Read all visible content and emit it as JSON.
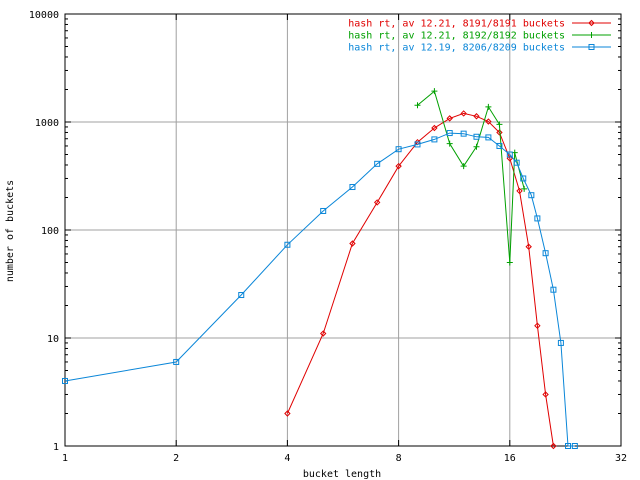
{
  "chart_data": {
    "type": "line",
    "title": "",
    "xlabel": "bucket length",
    "ylabel": "number of buckets",
    "x_scale": "log2",
    "y_scale": "log10",
    "xlim": [
      1,
      32
    ],
    "ylim": [
      1,
      10000
    ],
    "x_ticks": [
      {
        "value": 1,
        "label": "1"
      },
      {
        "value": 2,
        "label": "2"
      },
      {
        "value": 4,
        "label": "4"
      },
      {
        "value": 8,
        "label": "8"
      },
      {
        "value": 16,
        "label": "16"
      },
      {
        "value": 32,
        "label": "32"
      }
    ],
    "y_ticks": [
      {
        "value": 1,
        "label": "1"
      },
      {
        "value": 10,
        "label": "10"
      },
      {
        "value": 100,
        "label": "100"
      },
      {
        "value": 1000,
        "label": "1000"
      },
      {
        "value": 10000,
        "label": "10000"
      }
    ],
    "grid": true,
    "legend_position": "top-right",
    "series": [
      {
        "name": "hash rt, av 12.21, 8191/8191 buckets",
        "color": "#e00000",
        "marker": "diamond",
        "points": [
          [
            4,
            2
          ],
          [
            5,
            11
          ],
          [
            6,
            75
          ],
          [
            7,
            180
          ],
          [
            8,
            390
          ],
          [
            9,
            650
          ],
          [
            10,
            880
          ],
          [
            11,
            1080
          ],
          [
            12,
            1200
          ],
          [
            13,
            1130
          ],
          [
            14,
            1010
          ],
          [
            15,
            800
          ],
          [
            16,
            460
          ],
          [
            17,
            230
          ],
          [
            18,
            70
          ],
          [
            19,
            13
          ],
          [
            20,
            3
          ],
          [
            21,
            1
          ]
        ]
      },
      {
        "name": "hash rt, av 12.21, 8192/8192 buckets",
        "color": "#00a000",
        "marker": "plus",
        "points": [
          [
            9,
            1430
          ],
          [
            10,
            1930
          ],
          [
            11,
            630
          ],
          [
            12,
            390
          ],
          [
            13,
            590
          ],
          [
            14,
            1380
          ],
          [
            15,
            950
          ],
          [
            16,
            50
          ],
          [
            16.5,
            520
          ],
          [
            17.5,
            240
          ]
        ]
      },
      {
        "name": "hash rt, av 12.19, 8206/8209 buckets",
        "color": "#0a86d8",
        "marker": "square",
        "points": [
          [
            1,
            4
          ],
          [
            2,
            6
          ],
          [
            3,
            25
          ],
          [
            4,
            73
          ],
          [
            5,
            150
          ],
          [
            6,
            250
          ],
          [
            7,
            410
          ],
          [
            8,
            560
          ],
          [
            9,
            620
          ],
          [
            10,
            690
          ],
          [
            11,
            790
          ],
          [
            12,
            780
          ],
          [
            13,
            730
          ],
          [
            14,
            720
          ],
          [
            15,
            600
          ],
          [
            16,
            500
          ],
          [
            16.7,
            420
          ],
          [
            17.4,
            300
          ],
          [
            18.3,
            210
          ],
          [
            19,
            128
          ],
          [
            20,
            61
          ],
          [
            21,
            28
          ],
          [
            22,
            9
          ],
          [
            23,
            1
          ],
          [
            24,
            1
          ]
        ]
      }
    ]
  }
}
